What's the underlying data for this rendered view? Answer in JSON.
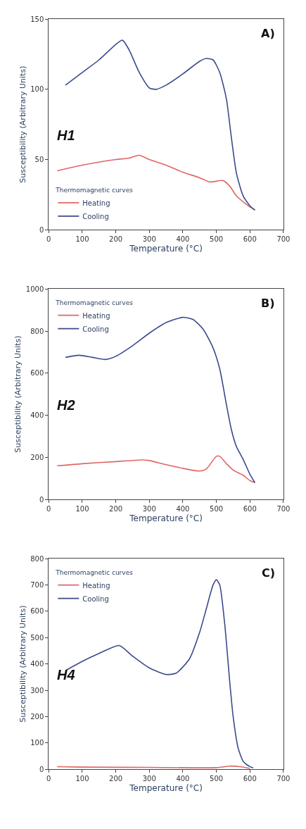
{
  "chart_data": [
    {
      "type": "line",
      "xlabel": "Temperature (°C)",
      "ylabel": "Susceptibility (Arbitrary Units)",
      "legend_title": "Thermomagnetic curves",
      "legend": "bottom left",
      "line_style": "solid",
      "marker": "none",
      "xlim": [
        0,
        700
      ],
      "xticks": [
        0,
        100,
        200,
        300,
        400,
        500,
        600,
        700
      ],
      "ylim": [
        0,
        150
      ],
      "yticks": [
        0,
        50,
        100,
        150
      ],
      "annotations": [
        "A)",
        "H1"
      ],
      "series": [
        {
          "name": "Heating",
          "color": "#e06666",
          "x": [
            25,
            100,
            200,
            240,
            270,
            300,
            350,
            400,
            450,
            480,
            520,
            540,
            560,
            590,
            615
          ],
          "values": [
            42,
            46,
            50,
            51,
            53,
            50,
            46,
            41,
            37,
            34,
            35,
            31,
            24,
            18,
            14
          ]
        },
        {
          "name": "Cooling",
          "color": "#3b4a8c",
          "x": [
            50,
            100,
            150,
            200,
            220,
            240,
            270,
            300,
            320,
            350,
            400,
            450,
            470,
            490,
            510,
            530,
            545,
            560,
            580,
            600,
            615
          ],
          "values": [
            103,
            112,
            121,
            132,
            135,
            128,
            112,
            101,
            100,
            103,
            111,
            120,
            122,
            121,
            112,
            93,
            65,
            40,
            24,
            17,
            14
          ]
        }
      ]
    },
    {
      "type": "line",
      "xlabel": "Temperature (°C)",
      "ylabel": "Susceptibility (Arbitrary Units)",
      "legend_title": "Thermomagnetic curves",
      "legend": "top left",
      "line_style": "solid",
      "marker": "none",
      "xlim": [
        0,
        700
      ],
      "xticks": [
        0,
        100,
        200,
        300,
        400,
        500,
        600,
        700
      ],
      "ylim": [
        0,
        1000
      ],
      "yticks": [
        0,
        200,
        400,
        600,
        800,
        1000
      ],
      "annotations": [
        "B)",
        "H2"
      ],
      "series": [
        {
          "name": "Heating",
          "color": "#e06666",
          "x": [
            25,
            100,
            200,
            280,
            300,
            350,
            400,
            450,
            470,
            500,
            510,
            530,
            550,
            580,
            600,
            615
          ],
          "values": [
            160,
            170,
            180,
            188,
            185,
            165,
            148,
            135,
            145,
            205,
            205,
            170,
            140,
            115,
            90,
            80
          ]
        },
        {
          "name": "Cooling",
          "color": "#3b4a8c",
          "x": [
            50,
            90,
            130,
            170,
            200,
            250,
            300,
            350,
            400,
            430,
            460,
            490,
            510,
            530,
            545,
            560,
            580,
            600,
            615
          ],
          "values": [
            675,
            685,
            675,
            665,
            680,
            730,
            790,
            840,
            865,
            855,
            810,
            720,
            620,
            450,
            330,
            250,
            190,
            120,
            80
          ]
        }
      ]
    },
    {
      "type": "line",
      "xlabel": "Temperature (°C)",
      "ylabel": "Susceptibility (Arbitrary Units)",
      "legend_title": "Thermomagnetic curves",
      "legend": "top left",
      "line_style": "solid",
      "marker": "none",
      "xlim": [
        0,
        700
      ],
      "xticks": [
        0,
        100,
        200,
        300,
        400,
        500,
        600,
        700
      ],
      "ylim": [
        0,
        800
      ],
      "yticks": [
        0,
        100,
        200,
        300,
        400,
        500,
        600,
        700,
        800
      ],
      "annotations": [
        "C)",
        "H4"
      ],
      "series": [
        {
          "name": "Heating",
          "color": "#e06666",
          "x": [
            25,
            100,
            300,
            500,
            540,
            570,
            600
          ],
          "values": [
            10,
            8,
            7,
            6,
            12,
            10,
            3
          ]
        },
        {
          "name": "Cooling",
          "color": "#3b4a8c",
          "x": [
            50,
            100,
            150,
            210,
            250,
            300,
            350,
            380,
            420,
            450,
            470,
            490,
            500,
            510,
            525,
            540,
            550,
            565,
            580,
            600,
            610
          ],
          "values": [
            375,
            410,
            440,
            470,
            430,
            385,
            360,
            365,
            420,
            520,
            610,
            700,
            720,
            700,
            550,
            330,
            200,
            80,
            30,
            10,
            5
          ]
        }
      ]
    }
  ]
}
